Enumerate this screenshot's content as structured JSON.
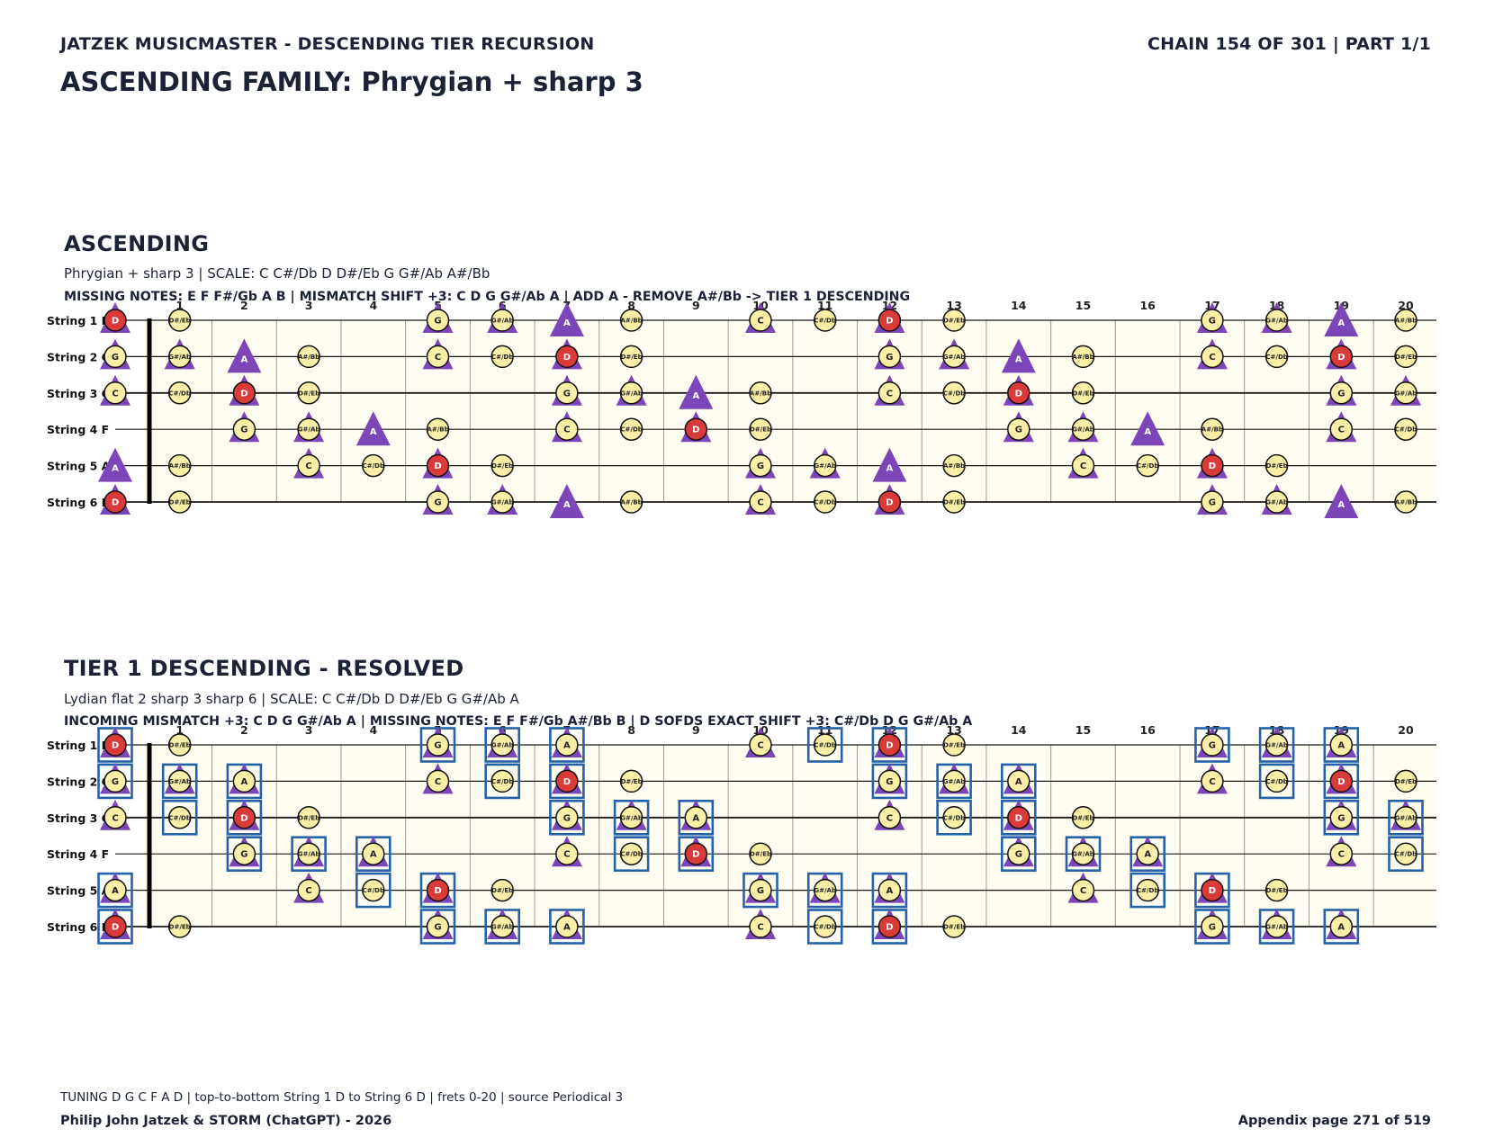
{
  "header": {
    "left_title": "JATZEK MUSICMASTER - DESCENDING TIER RECURSION",
    "right_title": "CHAIN 154 OF 301  |  PART 1/1",
    "family_title": "ASCENDING FAMILY: Phrygian + sharp 3"
  },
  "frets": [
    "",
    "1",
    "2",
    "3",
    "4",
    "5",
    "6",
    "7",
    "8",
    "9",
    "10",
    "11",
    "12",
    "13",
    "14",
    "15",
    "16",
    "17",
    "18",
    "19",
    "20"
  ],
  "strings": [
    {
      "label": "String 1 D",
      "open": "D"
    },
    {
      "label": "String 2 G",
      "open": "G"
    },
    {
      "label": "String 3 C",
      "open": "C"
    },
    {
      "label": "String 4 F",
      "open": "F"
    },
    {
      "label": "String 5 A",
      "open": "A"
    },
    {
      "label": "String 6 D",
      "open": "D"
    }
  ],
  "colors": {
    "root": "#d93a3a",
    "note": "#fbeea6",
    "triangle": "#7d46b8",
    "box": "#2563a8",
    "board": "#fffdf2",
    "nut": "#000000"
  },
  "sections": [
    {
      "id": "ascending",
      "title": "ASCENDING",
      "scale_line": "Phrygian + sharp 3  |  SCALE: C C#/Db D D#/Eb G G#/Ab A#/Bb",
      "note_line": "MISSING NOTES: E F F#/Gb A B  |  MISMATCH SHIFT +3: C D G G#/Ab A  |  ADD A - REMOVE A#/Bb -> TIER 1 DESCENDING",
      "scale_notes": [
        "C",
        "C#/Db",
        "D",
        "D#/Eb",
        "G",
        "G#/Ab",
        "A#/Bb"
      ],
      "root": "D",
      "triangle_notes": [
        "C",
        "D",
        "G",
        "G#/Ab",
        "A"
      ],
      "boxed_notes": []
    },
    {
      "id": "tier1",
      "title": "TIER 1 DESCENDING - RESOLVED",
      "scale_line": "Lydian flat 2 sharp 3 sharp 6  |  SCALE: C C#/Db D D#/Eb G G#/Ab A",
      "note_line": "INCOMING MISMATCH +3: C D G G#/Ab A  |  MISSING NOTES: E F F#/Gb A#/Bb B  |  D SOFDS EXACT SHIFT +3: C#/Db D G G#/Ab A",
      "scale_notes": [
        "C",
        "C#/Db",
        "D",
        "D#/Eb",
        "G",
        "G#/Ab",
        "A"
      ],
      "root": "D",
      "triangle_notes": [
        "C",
        "D",
        "G",
        "G#/Ab",
        "A"
      ],
      "boxed_notes": [
        "C#/Db",
        "D",
        "G",
        "G#/Ab",
        "A"
      ]
    }
  ],
  "footer": {
    "tuning_line": "TUNING D G C F A D | top-to-bottom String 1 D to String 6 D | frets 0-20 | source Periodical 3",
    "author": "Philip John Jatzek & STORM (ChatGPT) - 2026",
    "page": "Appendix page 271 of 519"
  }
}
